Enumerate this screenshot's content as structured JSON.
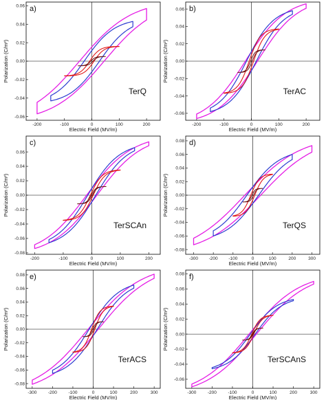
{
  "colors": {
    "outer": "#e51ce5",
    "mid": "#2b3bd0",
    "inner": "#e01818",
    "small": "#6a1010"
  },
  "chart_data": [
    {
      "type": "line",
      "panel_label": "a)",
      "sample": "TerQ",
      "xlabel": "Electric Field (MV/m)",
      "ylabel": "Polarization (C/m²)",
      "xticks": [
        -200,
        -100,
        0,
        100,
        200
      ],
      "yticks": [
        -0.06,
        -0.04,
        -0.02,
        0.0,
        0.02,
        0.04,
        0.06
      ],
      "xlim": [
        -240,
        250
      ],
      "ylim": [
        -0.064,
        0.064
      ],
      "loops": [
        {
          "Emax": 200,
          "Pmax": 0.057,
          "Pr": 0.025,
          "Ec": 45,
          "a": 0.35
        },
        {
          "Emax": 150,
          "Pmax": 0.043,
          "Pr": 0.011,
          "Ec": 28,
          "a": 0.45
        },
        {
          "Emax": 100,
          "Pmax": 0.016,
          "Pr": 0.0015,
          "Ec": 8,
          "a": 0.9
        },
        {
          "Emax": 50,
          "Pmax": 0.005,
          "Pr": 0.0004,
          "Ec": 4,
          "a": 1.0
        }
      ],
      "grid": false
    },
    {
      "type": "line",
      "panel_label": "b)",
      "sample": "TerAC",
      "xlabel": "Electric Field (MV/m)",
      "ylabel": "Polarization (C/m²)",
      "xticks": [
        -200,
        -100,
        0,
        100,
        200
      ],
      "yticks": [
        -0.06,
        -0.04,
        -0.02,
        0.0,
        0.02,
        0.04,
        0.06
      ],
      "xlim": [
        -240,
        250
      ],
      "ylim": [
        -0.068,
        0.068
      ],
      "loops": [
        {
          "Emax": 200,
          "Pmax": 0.066,
          "Pr": 0.014,
          "Ec": 22,
          "a": 0.45
        },
        {
          "Emax": 150,
          "Pmax": 0.058,
          "Pr": 0.009,
          "Ec": 18,
          "a": 0.5
        },
        {
          "Emax": 100,
          "Pmax": 0.037,
          "Pr": 0.004,
          "Ec": 8,
          "a": 0.8
        },
        {
          "Emax": 50,
          "Pmax": 0.013,
          "Pr": 0.0005,
          "Ec": 3,
          "a": 1.0
        }
      ],
      "grid": false
    },
    {
      "type": "line",
      "panel_label": "c)",
      "sample": "TerSCAn",
      "xlabel": "Electric Field (MV/m)",
      "ylabel": "Polarization (C/m²)",
      "xticks": [
        -200,
        -100,
        0,
        100,
        200
      ],
      "yticks": [
        -0.08,
        -0.06,
        -0.04,
        -0.02,
        0.0,
        0.02,
        0.04,
        0.06
      ],
      "xlim": [
        -230,
        240
      ],
      "ylim": [
        -0.082,
        0.082
      ],
      "loops": [
        {
          "Emax": 200,
          "Pmax": 0.074,
          "Pr": 0.012,
          "Ec": 18,
          "a": 0.42
        },
        {
          "Emax": 150,
          "Pmax": 0.066,
          "Pr": 0.009,
          "Ec": 14,
          "a": 0.45
        },
        {
          "Emax": 100,
          "Pmax": 0.035,
          "Pr": 0.003,
          "Ec": 5,
          "a": 0.8
        },
        {
          "Emax": 50,
          "Pmax": 0.012,
          "Pr": 0.0004,
          "Ec": 2,
          "a": 1.0
        }
      ],
      "grid": false
    },
    {
      "type": "line",
      "panel_label": "d)",
      "sample": "TerQS",
      "xlabel": "Electric Field (MV/m)",
      "ylabel": "Polarization (C/m²)",
      "xticks": [
        -300,
        -200,
        -100,
        0,
        100,
        200,
        300
      ],
      "yticks": [
        -0.08,
        -0.06,
        -0.04,
        -0.02,
        0.0,
        0.02,
        0.04,
        0.06,
        0.08
      ],
      "xlim": [
        -340,
        340
      ],
      "ylim": [
        -0.087,
        0.087
      ],
      "loops": [
        {
          "Emax": 300,
          "Pmax": 0.073,
          "Pr": 0.018,
          "Ec": 40,
          "a": 0.35
        },
        {
          "Emax": 200,
          "Pmax": 0.06,
          "Pr": 0.015,
          "Ec": 30,
          "a": 0.4
        },
        {
          "Emax": 100,
          "Pmax": 0.031,
          "Pr": 0.004,
          "Ec": 10,
          "a": 0.75
        },
        {
          "Emax": 50,
          "Pmax": 0.01,
          "Pr": 0.0006,
          "Ec": 4,
          "a": 1.0
        }
      ],
      "grid": false
    },
    {
      "type": "line",
      "panel_label": "e)",
      "sample": "TerACS",
      "xlabel": "Electric Field (MV/m)",
      "ylabel": "Polarization (C/m²)",
      "xticks": [
        -300,
        -200,
        -100,
        0,
        100,
        200,
        300
      ],
      "yticks": [
        -0.08,
        -0.06,
        -0.04,
        -0.02,
        0.0,
        0.02,
        0.04,
        0.06,
        0.08
      ],
      "xlim": [
        -330,
        330
      ],
      "ylim": [
        -0.087,
        0.087
      ],
      "loops": [
        {
          "Emax": 300,
          "Pmax": 0.081,
          "Pr": 0.012,
          "Ec": 25,
          "a": 0.38
        },
        {
          "Emax": 200,
          "Pmax": 0.065,
          "Pr": 0.01,
          "Ec": 20,
          "a": 0.45
        },
        {
          "Emax": 100,
          "Pmax": 0.034,
          "Pr": 0.004,
          "Ec": 8,
          "a": 0.8
        },
        {
          "Emax": 50,
          "Pmax": 0.011,
          "Pr": 0.0005,
          "Ec": 3,
          "a": 1.0
        }
      ],
      "grid": false
    },
    {
      "type": "line",
      "panel_label": "f)",
      "sample": "TerSCAnS",
      "xlabel": "Electric Field (MV/m)",
      "ylabel": "Polarization (C/m²)",
      "xticks": [
        -300,
        -200,
        -100,
        0,
        100,
        200,
        300
      ],
      "yticks": [
        -0.06,
        -0.04,
        -0.02,
        0.0,
        0.02,
        0.04,
        0.06,
        0.08
      ],
      "xlim": [
        -330,
        330
      ],
      "ylim": [
        -0.072,
        0.085
      ],
      "loops": [
        {
          "Emax": 300,
          "Pmax": 0.07,
          "Pr": 0.008,
          "Ec": 18,
          "a": 0.4
        },
        {
          "Emax": 200,
          "Pmax": 0.046,
          "Pr": 0.005,
          "Ec": 12,
          "a": 0.5
        },
        {
          "Emax": 100,
          "Pmax": 0.025,
          "Pr": 0.002,
          "Ec": 5,
          "a": 0.8
        },
        {
          "Emax": 50,
          "Pmax": 0.008,
          "Pr": 0.0003,
          "Ec": 2,
          "a": 1.0
        }
      ],
      "grid": false
    }
  ]
}
